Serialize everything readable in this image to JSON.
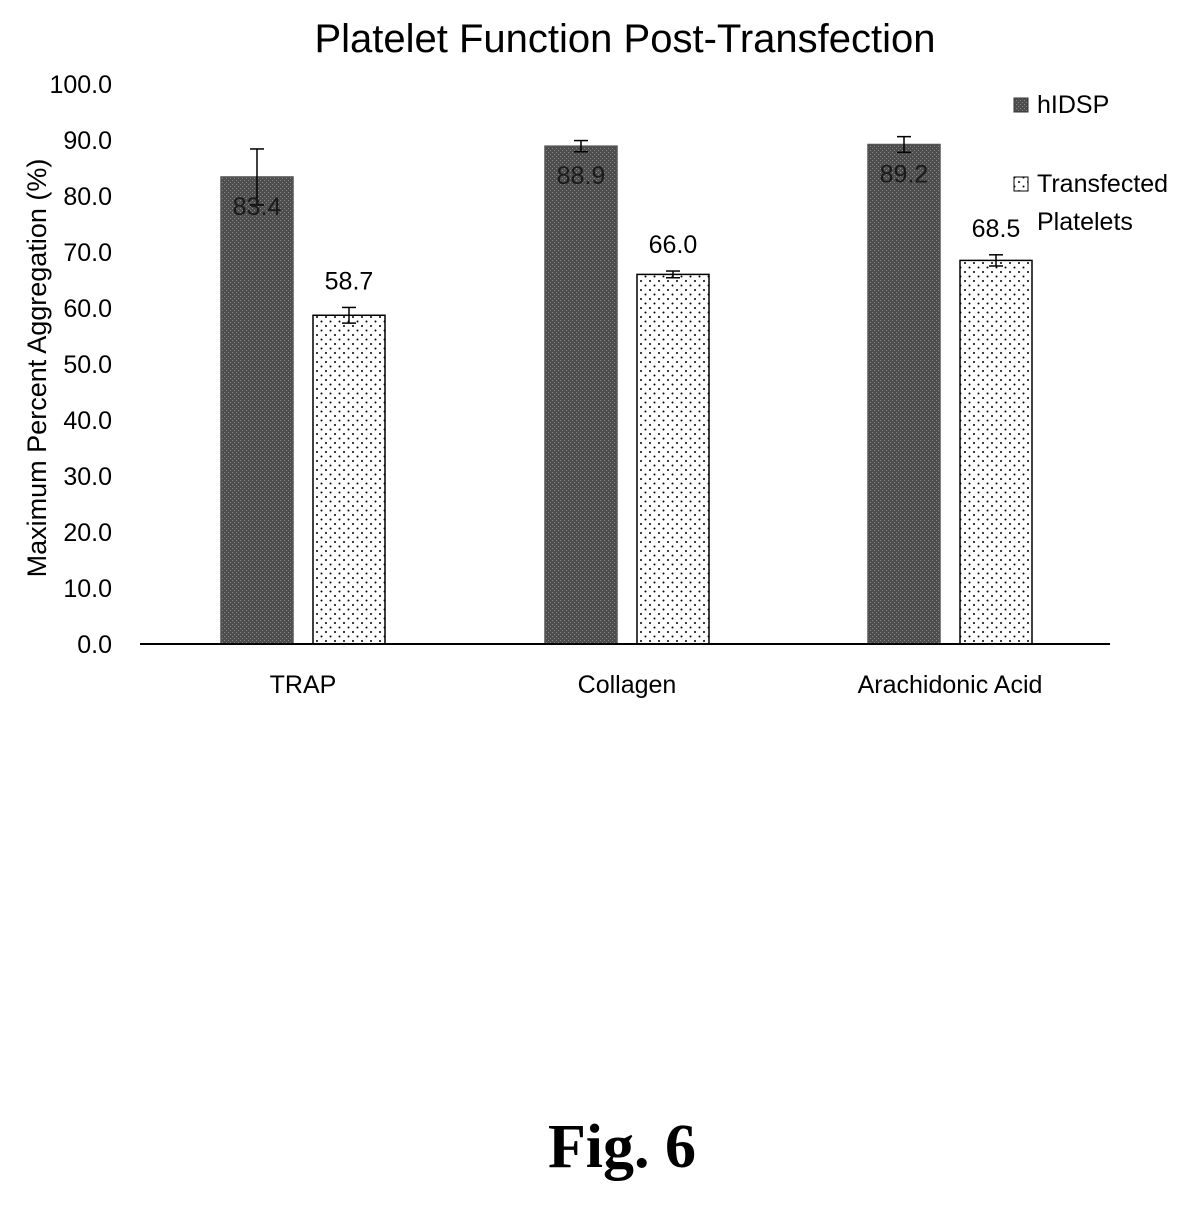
{
  "chart_data": {
    "type": "bar",
    "title": "Platelet Function Post-Transfection",
    "ylabel": "Maximum Percent Aggregation (%)",
    "xlabel": "",
    "ylim": [
      0,
      100
    ],
    "yticks": [
      "0.0",
      "10.0",
      "20.0",
      "30.0",
      "40.0",
      "50.0",
      "60.0",
      "70.0",
      "80.0",
      "90.0",
      "100.0"
    ],
    "categories": [
      "TRAP",
      "Collagen",
      "Arachidonic Acid"
    ],
    "series": [
      {
        "name": "hIDSP",
        "values": [
          83.4,
          88.9,
          89.2
        ],
        "labels": [
          "83.4",
          "88.9",
          "89.2"
        ],
        "errors": [
          5.0,
          1.0,
          1.4
        ],
        "pattern": "dense-dark-hatch",
        "color": "#555555"
      },
      {
        "name": "Transfected Platelets",
        "values": [
          58.7,
          66.0,
          68.5
        ],
        "labels": [
          "58.7",
          "66.0",
          "68.5"
        ],
        "errors": [
          1.4,
          0.6,
          1.0
        ],
        "pattern": "dots",
        "color": "#ffffff"
      }
    ],
    "legend": {
      "position": "top-right",
      "entries": [
        {
          "lines": [
            "hIDSP"
          ]
        },
        {
          "lines": [
            "Transfected",
            "Platelets"
          ]
        }
      ]
    },
    "grid": false
  },
  "caption": "Fig. 6"
}
